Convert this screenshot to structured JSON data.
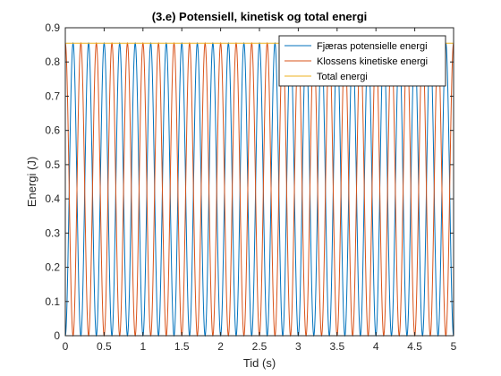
{
  "chart_data": {
    "type": "line",
    "title": "(3.e) Potensiell, kinetisk og total energi",
    "xlabel": "Tid (s)",
    "ylabel": "Energi (J)",
    "xlim": [
      0,
      5
    ],
    "ylim": [
      0,
      0.9
    ],
    "xticks": [
      "0",
      "0.5",
      "1",
      "1.5",
      "2",
      "2.5",
      "3",
      "3.5",
      "4",
      "4.5",
      "5"
    ],
    "yticks": [
      "0",
      "0.1",
      "0.2",
      "0.3",
      "0.4",
      "0.5",
      "0.6",
      "0.7",
      "0.8",
      "0.9"
    ],
    "grid": false,
    "legend_position": "top-right",
    "total_energy": 0.855,
    "energy_oscillations_in_range": 25,
    "series": [
      {
        "name": "Fjæras potensielle energi",
        "color": "#0072BD",
        "shape": "sin^2",
        "max": 0.855,
        "min": 0
      },
      {
        "name": "Klossens kinetiske energi",
        "color": "#D95319",
        "shape": "cos^2",
        "max": 0.855,
        "min": 0
      },
      {
        "name": "Total energi",
        "color": "#EDB120",
        "shape": "constant",
        "value": 0.855
      }
    ]
  }
}
